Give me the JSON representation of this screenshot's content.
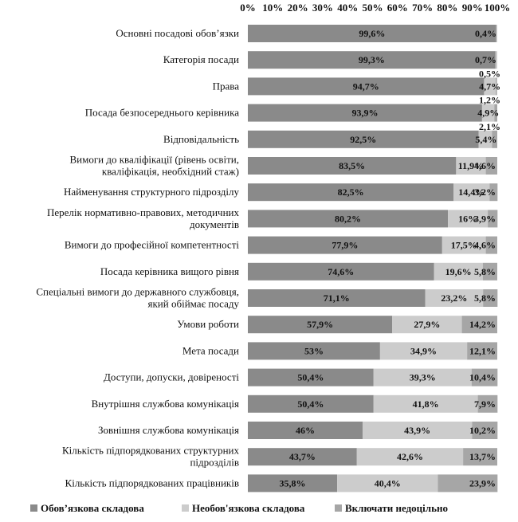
{
  "chart_data": {
    "type": "bar",
    "orientation": "horizontal",
    "stacked": true,
    "percent_stacked": true,
    "title": "",
    "xlabel": "",
    "ylabel": "",
    "xlim": [
      0,
      100
    ],
    "x_ticks": [
      "0%",
      "10%",
      "20%",
      "30%",
      "40%",
      "50%",
      "60%",
      "70%",
      "80%",
      "90%",
      "100%"
    ],
    "x_axis_position": "top",
    "grid": false,
    "legend_position": "bottom",
    "categories": [
      "Основні посадові обов’язки",
      "Категорія посади",
      "Права",
      "Посада безпосереднього керівника",
      "Відповідальність",
      "Вимоги до кваліфікації (рівень освіти, кваліфікація, необхідний стаж)",
      "Найменування структурного підрозділу",
      "Перелік нормативно-правових, методичних документів",
      "Вимоги до професійної компетентності",
      "Посада керівника вищого рівня",
      "Спеціальні вимоги до державного службовця, який обіймає посаду",
      "Умови роботи",
      "Мета посади",
      "Доступи, допуски,  довіреності",
      "Внутрішня службова комунікація",
      "Зовнішня службова комунікація",
      "Кількість підпорядкованих структурних підрозділів",
      "Кількість підпорядкованих працівників"
    ],
    "category_lines": [
      [
        "Основні посадові обов’язки"
      ],
      [
        "Категорія посади"
      ],
      [
        "Права"
      ],
      [
        "Посада безпосереднього керівника"
      ],
      [
        "Відповідальність"
      ],
      [
        "Вимоги до кваліфікації (рівень освіти,",
        "кваліфікація, необхідний стаж)"
      ],
      [
        "Найменування структурного підрозділу"
      ],
      [
        "Перелік нормативно-правових, методичних",
        "документів"
      ],
      [
        "Вимоги до професійної компетентності"
      ],
      [
        "Посада керівника вищого рівня"
      ],
      [
        "Спеціальні вимоги до державного службовця,",
        "який обіймає посаду"
      ],
      [
        "Умови роботи"
      ],
      [
        "Мета посади"
      ],
      [
        "Доступи, допуски,  довіреності"
      ],
      [
        "Внутрішня службова комунікація"
      ],
      [
        "Зовнішня службова комунікація"
      ],
      [
        "Кількість підпорядкованих структурних",
        "підрозділів"
      ],
      [
        "Кількість підпорядкованих працівників"
      ]
    ],
    "series": [
      {
        "name": "Обов’язкова складова",
        "color": "#8a8a8a",
        "values": [
          99.6,
          99.3,
          94.7,
          93.9,
          92.5,
          83.5,
          82.5,
          80.2,
          77.9,
          74.6,
          71.1,
          57.9,
          53,
          50.4,
          50.4,
          46,
          43.7,
          35.8
        ],
        "labels": [
          "99,6%",
          "99,3%",
          "94,7%",
          "93,9%",
          "92,5%",
          "83,5%",
          "82,5%",
          "80,2%",
          "77,9%",
          "74,6%",
          "71,1%",
          "57,9%",
          "53%",
          "50,4%",
          "50,4%",
          "46%",
          "43,7%",
          "35,8%"
        ]
      },
      {
        "name": "Необов'язкова складова",
        "color": "#cccccc",
        "values": [
          0.4,
          0.7,
          4.7,
          4.9,
          5.4,
          11.9,
          14.4,
          16,
          17.5,
          19.6,
          23.2,
          27.9,
          34.9,
          39.3,
          41.8,
          43.9,
          42.6,
          40.4
        ],
        "labels": [
          "0,4%",
          "0,7%",
          "4,7%",
          "4,9%",
          "5,4%",
          "11,9%",
          "14,4%",
          "16%",
          "17,5%",
          "19,6%",
          "23,2%",
          "27,9%",
          "34,9%",
          "39,3%",
          "41,8%",
          "43,9%",
          "42,6%",
          "40,4%"
        ]
      },
      {
        "name": "Включати недоцільно",
        "color": "#a6a6a6",
        "values": [
          0,
          0,
          0.5,
          1.2,
          2.1,
          4.6,
          3.2,
          3.9,
          4.6,
          5.8,
          5.8,
          14.2,
          12.1,
          10.4,
          7.9,
          10.2,
          13.7,
          23.9
        ],
        "labels": [
          "",
          "",
          "0,5%",
          "1,2%",
          "2,1%",
          "4,6%",
          "3,2%",
          "3,9%",
          "4,6%",
          "5,8%",
          "5,8%",
          "14,2%",
          "12,1%",
          "10,4%",
          "7,9%",
          "10,2%",
          "13,7%",
          "23,9%"
        ]
      }
    ]
  }
}
